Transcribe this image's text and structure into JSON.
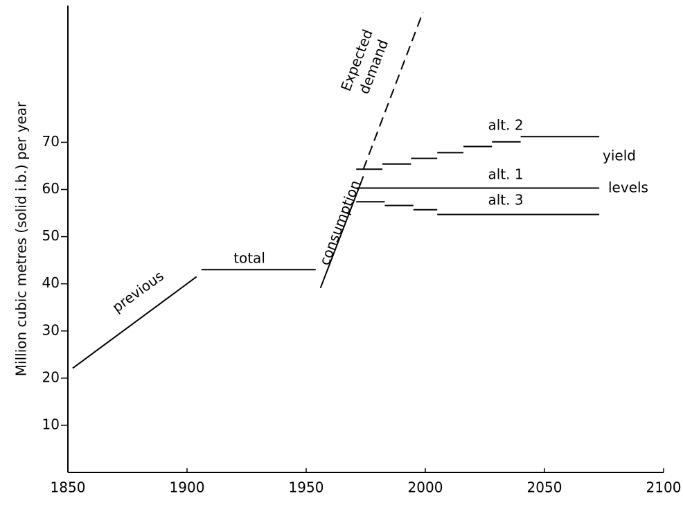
{
  "chart_data": {
    "type": "line",
    "y_label": "Million cubic metres (solid i.b.) per year",
    "xlim": [
      1850,
      2100
    ],
    "xticks": [
      1850,
      1900,
      1950,
      2000,
      2050,
      2100
    ],
    "ylim": [
      0,
      99
    ],
    "yticks": [
      10,
      20,
      30,
      40,
      50,
      60,
      70
    ],
    "color": "#000000",
    "series": [
      {
        "name": "previous",
        "x": [
          1852,
          1904
        ],
        "values": [
          22.1,
          41.5
        ]
      },
      {
        "name": "total",
        "x": [
          1906,
          1954
        ],
        "values": [
          43,
          43
        ]
      },
      {
        "name": "consumption",
        "x": [
          1956,
          1974
        ],
        "values": [
          39.1,
          62.8
        ]
      },
      {
        "name": "Expected demand",
        "dashed": true,
        "x": [
          1974,
          1999
        ],
        "values": [
          64.3,
          97.6
        ]
      },
      {
        "name": "alt. 2",
        "edges": [
          1971,
          1982,
          1994,
          2005,
          2016,
          2028,
          2040,
          2073
        ],
        "values": [
          64.3,
          65.4,
          66.6,
          67.8,
          69.1,
          70.1,
          71.2
        ]
      },
      {
        "name": "alt. 1",
        "edges": [
          1971,
          2073
        ],
        "values": [
          60.3
        ]
      },
      {
        "name": "alt. 3",
        "edges": [
          1971,
          1983,
          1995,
          2005,
          2073
        ],
        "values": [
          57.4,
          56.6,
          55.7,
          54.7
        ]
      }
    ],
    "annotations": [
      "yield",
      "levels"
    ]
  }
}
